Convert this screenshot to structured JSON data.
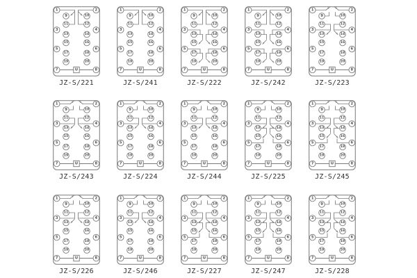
{
  "style": {
    "background": "#ffffff",
    "line_color": "#7c7c7c",
    "box_color": "#898989",
    "number_color": "#4f4f4f",
    "label_color": "#303030"
  },
  "terminal_labels": {
    "left_edge": [
      "1",
      "3",
      "5",
      "7"
    ],
    "inner_left": [
      "9",
      "11",
      "13",
      "15",
      "17",
      "19"
    ],
    "inner_right": [
      "10",
      "12",
      "14",
      "16",
      "18",
      "20"
    ],
    "right_edge": [
      "2",
      "4",
      "6",
      "8"
    ],
    "coil": "U"
  },
  "models": [
    {
      "label": "JZ-S/221",
      "contacts": [
        "B"
      ]
    },
    {
      "label": "JZ-S/241",
      "contacts": [
        "B"
      ]
    },
    {
      "label": "JZ-S/222",
      "contacts": [
        "B",
        "D2",
        "E"
      ]
    },
    {
      "label": "JZ-S/242",
      "contacts": [
        "B",
        "D2",
        "E"
      ]
    },
    {
      "label": "JZ-S/223",
      "contacts": [
        "A",
        "C"
      ]
    },
    {
      "label": "JZ-S/243",
      "contacts": [
        "A",
        "C"
      ]
    },
    {
      "label": "JZ-S/224",
      "contacts": [
        "A",
        "C"
      ]
    },
    {
      "label": "JZ-S/244",
      "contacts": [
        "A",
        "C"
      ]
    },
    {
      "label": "JZ-S/225",
      "contacts": [
        "A",
        "C",
        "D"
      ]
    },
    {
      "label": "JZ-S/245",
      "contacts": [
        "A",
        "C",
        "D"
      ]
    },
    {
      "label": "JZ-S/226",
      "contacts": [
        "A",
        "C"
      ]
    },
    {
      "label": "JZ-S/246",
      "contacts": [
        "A",
        "C"
      ]
    },
    {
      "label": "JZ-S/227",
      "contacts": [
        "A",
        "C",
        "D"
      ]
    },
    {
      "label": "JZ-S/247",
      "contacts": [
        "A",
        "C",
        "D"
      ]
    },
    {
      "label": "JZ-S/228",
      "contacts": [
        "A",
        "C",
        "D"
      ]
    }
  ]
}
